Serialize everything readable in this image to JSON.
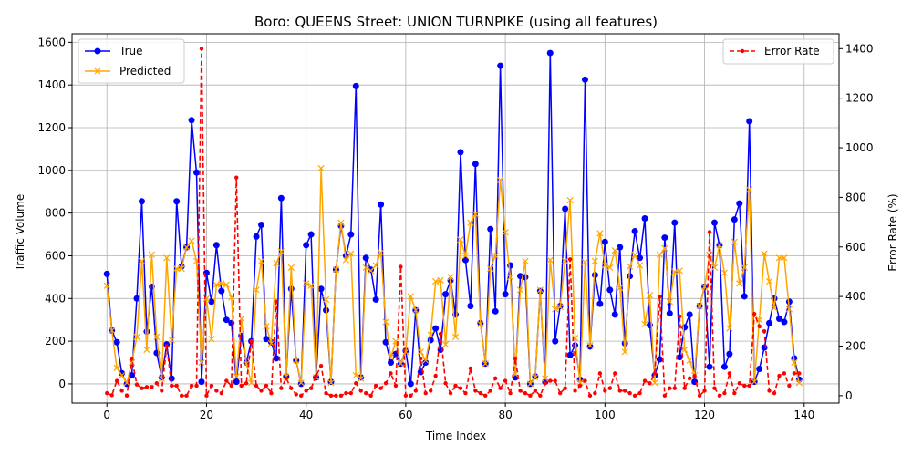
{
  "chart_data": {
    "type": "line",
    "title": "Boro: QUEENS Street: UNION TURNPIKE (using all features)",
    "xlabel": "Time Index",
    "ylabel": "Traffic Volume",
    "y2label": "Error Rate (%)",
    "xlim": [
      -7,
      147
    ],
    "ylim": [
      -90,
      1640
    ],
    "y2lim": [
      -30,
      1460
    ],
    "xticks": [
      0,
      20,
      40,
      60,
      80,
      100,
      120,
      140
    ],
    "yticks": [
      0,
      200,
      400,
      600,
      800,
      1000,
      1200,
      1400,
      1600
    ],
    "y2ticks": [
      0,
      200,
      400,
      600,
      800,
      1000,
      1200,
      1400
    ],
    "grid": true,
    "legend_left": "upper-left",
    "legend_right": "upper-right",
    "colors": {
      "true": "#0000ff",
      "predicted": "#ffa500",
      "error": "#ff0000"
    },
    "x_start": 0,
    "series": [
      {
        "name": "True",
        "axis": "left",
        "marker": "circle",
        "values": [
          515,
          250,
          195,
          50,
          0,
          40,
          400,
          855,
          245,
          455,
          145,
          30,
          185,
          25,
          855,
          550,
          640,
          1235,
          990,
          10,
          520,
          385,
          650,
          435,
          300,
          285,
          10,
          225,
          100,
          200,
          690,
          745,
          210,
          195,
          120,
          870,
          35,
          445,
          110,
          0,
          650,
          700,
          30,
          445,
          345,
          10,
          535,
          740,
          600,
          700,
          1395,
          30,
          590,
          535,
          395,
          840,
          195,
          100,
          140,
          95,
          155,
          0,
          345,
          55,
          100,
          205,
          260,
          160,
          420,
          485,
          325,
          1085,
          580,
          365,
          1030,
          285,
          95,
          725,
          340,
          1490,
          420,
          555,
          30,
          505,
          500,
          0,
          35,
          435,
          10,
          1550,
          200,
          365,
          820,
          135,
          180,
          20,
          1425,
          175,
          510,
          375,
          665,
          440,
          325,
          640,
          190,
          505,
          715,
          590,
          775,
          275,
          40,
          115,
          685,
          330,
          755,
          125,
          265,
          325,
          10,
          365,
          455,
          80,
          755,
          650,
          80,
          140,
          770,
          845,
          410,
          1230,
          10,
          70,
          170,
          285,
          400,
          305,
          290,
          385,
          120,
          20
        ]
      },
      {
        "name": "Predicted",
        "axis": "left",
        "marker": "x",
        "values": [
          460,
          250,
          75,
          40,
          5,
          100,
          220,
          575,
          160,
          605,
          220,
          25,
          590,
          205,
          540,
          540,
          640,
          670,
          575,
          100,
          400,
          210,
          465,
          470,
          465,
          405,
          35,
          305,
          95,
          5,
          440,
          575,
          270,
          190,
          565,
          620,
          35,
          545,
          110,
          5,
          470,
          460,
          30,
          1010,
          395,
          5,
          535,
          755,
          580,
          610,
          40,
          25,
          545,
          530,
          555,
          615,
          290,
          125,
          200,
          95,
          150,
          410,
          345,
          150,
          110,
          230,
          480,
          485,
          185,
          500,
          220,
          675,
          600,
          755,
          795,
          280,
          95,
          540,
          600,
          955,
          710,
          500,
          45,
          440,
          575,
          0,
          30,
          440,
          25,
          580,
          350,
          360,
          575,
          860,
          215,
          5,
          570,
          180,
          575,
          705,
          555,
          545,
          625,
          450,
          150,
          550,
          605,
          555,
          280,
          415,
          5,
          605,
          635,
          385,
          525,
          530,
          160,
          110,
          40,
          365,
          455,
          605,
          545,
          650,
          520,
          260,
          665,
          470,
          545,
          910,
          10,
          300,
          610,
          480,
          355,
          590,
          590,
          350,
          100,
          5
        ]
      },
      {
        "name": "Error Rate",
        "axis": "right",
        "marker": "dot",
        "dashed": true,
        "values": [
          10,
          2,
          60,
          20,
          0,
          150,
          45,
          30,
          35,
          35,
          50,
          20,
          200,
          40,
          40,
          0,
          0,
          40,
          40,
          1400,
          0,
          40,
          20,
          10,
          60,
          40,
          880,
          40,
          50,
          220,
          40,
          20,
          40,
          10,
          380,
          30,
          70,
          30,
          5,
          0,
          20,
          30,
          80,
          120,
          10,
          0,
          0,
          0,
          10,
          10,
          50,
          20,
          10,
          0,
          40,
          30,
          50,
          90,
          40,
          520,
          0,
          0,
          20,
          150,
          10,
          20,
          80,
          250,
          50,
          10,
          40,
          30,
          10,
          110,
          20,
          10,
          0,
          20,
          70,
          30,
          60,
          10,
          150,
          20,
          10,
          0,
          20,
          0,
          50,
          60,
          60,
          10,
          30,
          550,
          20,
          40,
          60,
          0,
          10,
          90,
          20,
          30,
          90,
          20,
          20,
          10,
          0,
          10,
          60,
          50,
          90,
          400,
          0,
          30,
          30,
          320,
          30,
          70,
          80,
          0,
          20,
          660,
          30,
          0,
          10,
          90,
          10,
          50,
          40,
          40,
          330,
          280,
          260,
          20,
          10,
          80,
          90,
          40,
          90,
          90
        ]
      }
    ]
  }
}
